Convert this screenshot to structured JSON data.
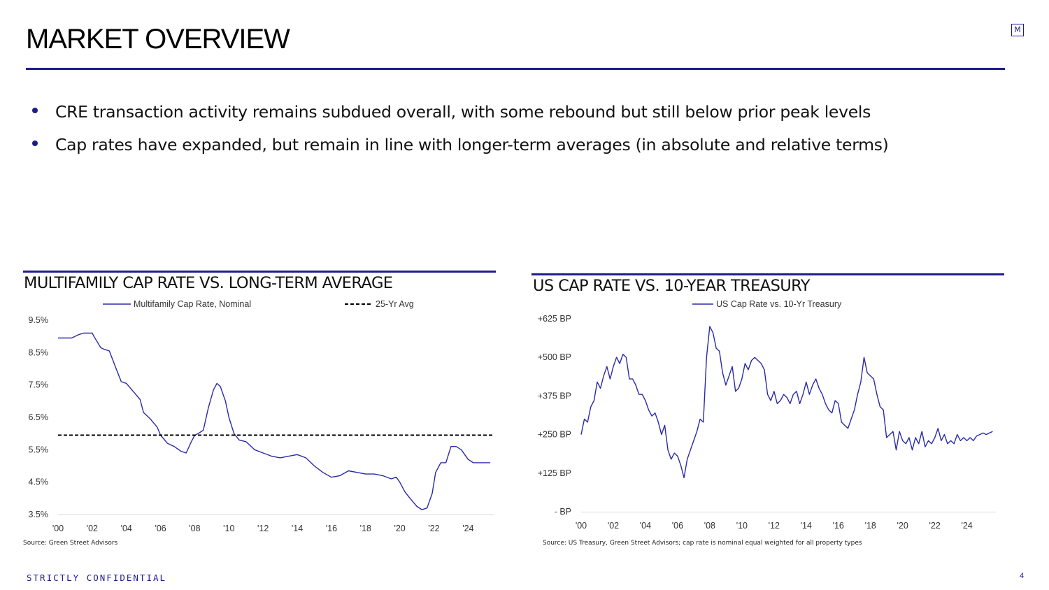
{
  "page": {
    "title": "MARKET OVERVIEW",
    "logo_letter": "M",
    "bullets": [
      "CRE transaction activity remains subdued overall, with some rebound but still below prior peak levels",
      "Cap rates have expanded, but remain in line with longer-term averages (in absolute and relative terms)"
    ],
    "footer": "STRICTLY CONFIDENTIAL",
    "page_number": "4",
    "accent_color": "#1f1c8c"
  },
  "chart_data": [
    {
      "type": "line",
      "title": "MULTIFAMILY CAP RATE VS. LONG-TERM AVERAGE",
      "source": "Source: Green Street Advisors",
      "xlim": [
        2000,
        2025.5
      ],
      "ylim": [
        3.5,
        9.5
      ],
      "yticks": [
        "9.5%",
        "8.5%",
        "7.5%",
        "6.5%",
        "5.5%",
        "4.5%",
        "3.5%"
      ],
      "ytick_values": [
        9.5,
        8.5,
        7.5,
        6.5,
        5.5,
        4.5,
        3.5
      ],
      "xticks": [
        "'00",
        "'02",
        "'04",
        "'06",
        "'08",
        "'10",
        "'12",
        "'14",
        "'16",
        "'18",
        "'20",
        "'22",
        "'24"
      ],
      "xtick_values": [
        2000,
        2002,
        2004,
        2006,
        2008,
        2010,
        2012,
        2014,
        2016,
        2018,
        2020,
        2022,
        2024
      ],
      "legend_position": "top",
      "grid": false,
      "series": [
        {
          "name": "Multifamily Cap Rate, Nominal",
          "style": "solid",
          "color": "#2a2aa8",
          "x": [
            2000,
            2000.8,
            2001.2,
            2001.5,
            2002,
            2002.1,
            2002.5,
            2002.7,
            2003,
            2003.4,
            2003.7,
            2004,
            2004.4,
            2004.8,
            2005,
            2005.4,
            2005.8,
            2006,
            2006.4,
            2006.8,
            2007.2,
            2007.5,
            2007.8,
            2008,
            2008.2,
            2008.5,
            2008.8,
            2009.1,
            2009.3,
            2009.5,
            2009.8,
            2010,
            2010.3,
            2010.6,
            2011,
            2011.5,
            2012,
            2012.5,
            2013,
            2013.5,
            2014,
            2014.5,
            2015,
            2015.5,
            2016,
            2016.5,
            2017,
            2017.5,
            2018,
            2018.5,
            2019,
            2019.5,
            2019.8,
            2020,
            2020.3,
            2020.6,
            2021,
            2021.3,
            2021.6,
            2021.9,
            2022.1,
            2022.4,
            2022.7,
            2023,
            2023.3,
            2023.6,
            2024,
            2024.3,
            2024.6,
            2024.9,
            2025.3
          ],
          "y": [
            8.95,
            8.95,
            9.05,
            9.1,
            9.1,
            9.0,
            8.65,
            8.6,
            8.55,
            8.0,
            7.6,
            7.55,
            7.3,
            7.05,
            6.65,
            6.45,
            6.2,
            5.95,
            5.7,
            5.6,
            5.45,
            5.4,
            5.75,
            5.95,
            6.0,
            6.1,
            6.8,
            7.35,
            7.55,
            7.45,
            7.0,
            6.5,
            6.0,
            5.8,
            5.75,
            5.5,
            5.4,
            5.3,
            5.25,
            5.3,
            5.35,
            5.25,
            5.0,
            4.8,
            4.65,
            4.7,
            4.85,
            4.8,
            4.75,
            4.75,
            4.7,
            4.6,
            4.65,
            4.5,
            4.2,
            4.0,
            3.75,
            3.65,
            3.7,
            4.15,
            4.8,
            5.1,
            5.1,
            5.6,
            5.6,
            5.5,
            5.2,
            5.1,
            5.1,
            5.1,
            5.1
          ]
        },
        {
          "name": "25-Yr Avg",
          "style": "dashed",
          "color": "#000000",
          "x": [
            2000,
            2025.5
          ],
          "y": [
            5.95,
            5.95
          ]
        }
      ]
    },
    {
      "type": "line",
      "title": "US CAP RATE VS. 10-YEAR TREASURY",
      "source": "Source: US Treasury, Green Street Advisors; cap rate is nominal equal weighted for all property types",
      "xlim": [
        2000,
        2025.8
      ],
      "ylim": [
        0,
        625
      ],
      "yticks": [
        "+625 BP",
        "+500 BP",
        "+375 BP",
        "+250 BP",
        "+125 BP",
        "- BP"
      ],
      "ytick_values": [
        625,
        500,
        375,
        250,
        125,
        0
      ],
      "xticks": [
        "'00",
        "'02",
        "'04",
        "'06",
        "'08",
        "'10",
        "'12",
        "'14",
        "'16",
        "'18",
        "'20",
        "'22",
        "'24"
      ],
      "xtick_values": [
        2000,
        2002,
        2004,
        2006,
        2008,
        2010,
        2012,
        2014,
        2016,
        2018,
        2020,
        2022,
        2024
      ],
      "legend_position": "top",
      "grid": false,
      "series": [
        {
          "name": "US Cap Rate vs. 10-Yr Treasury",
          "style": "solid",
          "color": "#2a2aa8",
          "x": [
            2000,
            2000.2,
            2000.4,
            2000.6,
            2000.8,
            2001,
            2001.2,
            2001.4,
            2001.6,
            2001.8,
            2002,
            2002.2,
            2002.4,
            2002.6,
            2002.8,
            2003,
            2003.2,
            2003.4,
            2003.6,
            2003.8,
            2004,
            2004.2,
            2004.4,
            2004.6,
            2004.8,
            2005,
            2005.2,
            2005.4,
            2005.6,
            2005.8,
            2006,
            2006.2,
            2006.4,
            2006.6,
            2006.8,
            2007,
            2007.2,
            2007.4,
            2007.6,
            2007.8,
            2008,
            2008.2,
            2008.4,
            2008.6,
            2008.8,
            2009,
            2009.2,
            2009.4,
            2009.6,
            2009.8,
            2010,
            2010.2,
            2010.4,
            2010.6,
            2010.8,
            2011,
            2011.2,
            2011.4,
            2011.6,
            2011.8,
            2012,
            2012.2,
            2012.4,
            2012.6,
            2012.8,
            2013,
            2013.2,
            2013.4,
            2013.6,
            2013.8,
            2014,
            2014.2,
            2014.4,
            2014.6,
            2014.8,
            2015,
            2015.2,
            2015.4,
            2015.6,
            2015.8,
            2016,
            2016.2,
            2016.4,
            2016.6,
            2016.8,
            2017,
            2017.2,
            2017.4,
            2017.6,
            2017.8,
            2018,
            2018.2,
            2018.4,
            2018.6,
            2018.8,
            2019,
            2019.2,
            2019.4,
            2019.6,
            2019.8,
            2020,
            2020.2,
            2020.4,
            2020.6,
            2020.8,
            2021,
            2021.2,
            2021.4,
            2021.6,
            2021.8,
            2022,
            2022.2,
            2022.4,
            2022.6,
            2022.8,
            2023,
            2023.2,
            2023.4,
            2023.6,
            2023.8,
            2024,
            2024.2,
            2024.4,
            2024.6,
            2024.8,
            2025,
            2025.2,
            2025.4,
            2025.6
          ],
          "y": [
            250,
            300,
            290,
            340,
            360,
            420,
            400,
            440,
            470,
            430,
            470,
            500,
            480,
            510,
            500,
            430,
            430,
            410,
            380,
            380,
            360,
            330,
            310,
            320,
            290,
            250,
            280,
            200,
            170,
            190,
            180,
            150,
            110,
            170,
            200,
            230,
            260,
            300,
            290,
            500,
            600,
            580,
            530,
            520,
            450,
            410,
            440,
            470,
            390,
            400,
            430,
            480,
            460,
            490,
            500,
            490,
            480,
            460,
            380,
            360,
            390,
            350,
            360,
            380,
            370,
            350,
            380,
            390,
            350,
            380,
            420,
            380,
            410,
            430,
            400,
            380,
            350,
            330,
            320,
            360,
            350,
            290,
            280,
            270,
            300,
            330,
            380,
            420,
            500,
            450,
            440,
            430,
            380,
            340,
            330,
            240,
            250,
            260,
            200,
            260,
            230,
            220,
            240,
            200,
            240,
            220,
            260,
            210,
            230,
            220,
            240,
            270,
            230,
            250,
            220,
            230,
            220,
            250,
            230,
            240,
            230,
            240,
            230,
            245,
            250,
            255,
            250,
            255,
            260
          ]
        }
      ]
    }
  ]
}
